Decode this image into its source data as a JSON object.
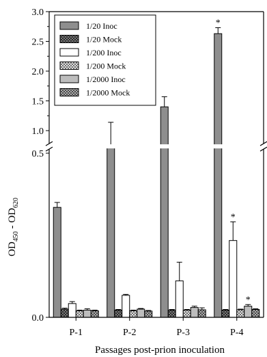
{
  "chart_data": {
    "type": "bar",
    "xlabel": "Passages post-prion inoculation",
    "ylabel": {
      "main": "OD",
      "sub1": "450",
      "mid": " - OD",
      "sub2": "620"
    },
    "categories": [
      "P-1",
      "P-2",
      "P-3",
      "P-4"
    ],
    "axis_break": true,
    "lower_ylim": [
      0.0,
      0.5
    ],
    "upper_ylim": [
      1.0,
      3.0
    ],
    "lower_ticks": [
      "0.0",
      "0.5"
    ],
    "upper_ticks": [
      "1.0",
      "1.5",
      "2.0",
      "2.5",
      "3.0"
    ],
    "legend_position": "top-left",
    "series": [
      {
        "name": "1/20 Inoc",
        "style": "solid-dark",
        "values": [
          0.335,
          0.82,
          1.4,
          2.63
        ],
        "errors": [
          0.015,
          0.32,
          0.17,
          0.1
        ],
        "significant": [
          false,
          false,
          false,
          true
        ]
      },
      {
        "name": "1/20 Mock",
        "style": "hatch-dark",
        "values": [
          0.025,
          0.022,
          0.022,
          0.022
        ],
        "errors": [
          0.003,
          0.002,
          0.002,
          0.002
        ],
        "significant": [
          false,
          false,
          false,
          false
        ]
      },
      {
        "name": "1/200 Inoc",
        "style": "white",
        "values": [
          0.042,
          0.067,
          0.111,
          0.234
        ],
        "errors": [
          0.006,
          0.003,
          0.057,
          0.057
        ],
        "significant": [
          false,
          false,
          false,
          true
        ]
      },
      {
        "name": "1/200 Mock",
        "style": "hatch-white",
        "values": [
          0.02,
          0.02,
          0.022,
          0.023
        ],
        "errors": [
          0.002,
          0.002,
          0.002,
          0.002
        ],
        "significant": [
          false,
          false,
          false,
          false
        ]
      },
      {
        "name": "1/2000 Inoc",
        "style": "solid-light",
        "values": [
          0.022,
          0.025,
          0.03,
          0.034
        ],
        "errors": [
          0.004,
          0.002,
          0.004,
          0.005
        ],
        "significant": [
          false,
          false,
          false,
          true
        ]
      },
      {
        "name": "1/2000 Mock",
        "style": "hatch-grey",
        "values": [
          0.02,
          0.019,
          0.023,
          0.024
        ],
        "errors": [
          0.002,
          0.002,
          0.006,
          0.002
        ],
        "significant": [
          false,
          false,
          false,
          false
        ]
      }
    ],
    "significance_marker": "*"
  }
}
